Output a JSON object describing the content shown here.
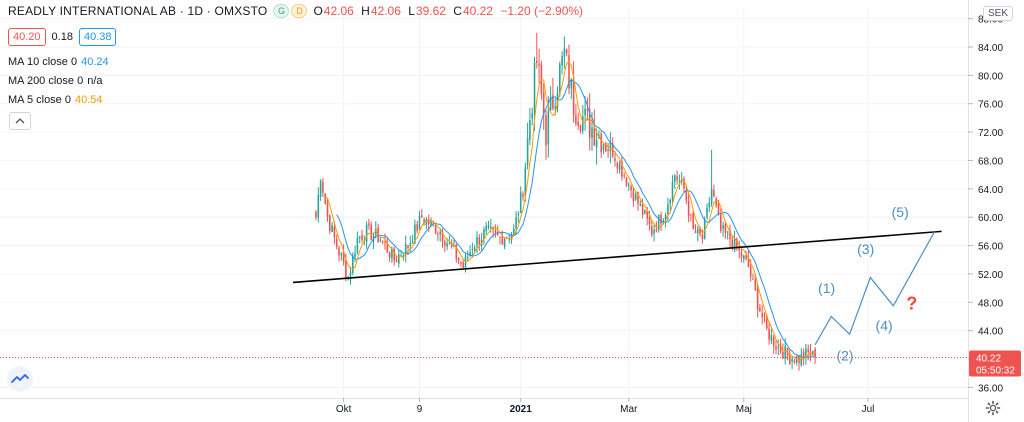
{
  "legend": {
    "symbol": "READLY INTERNATIONAL AB · 1D · OMXSTO",
    "badge_g": "G",
    "badge_d": "D",
    "ohlc": [
      {
        "k": "O",
        "v": "42.06"
      },
      {
        "k": "H",
        "v": "42.06"
      },
      {
        "k": "L",
        "v": "39.62"
      },
      {
        "k": "C",
        "v": "40.22"
      },
      {
        "k": "",
        "v": "−1.20 (−2.90%)"
      }
    ],
    "sell_price": "40.20",
    "spread": "0.18",
    "buy_price": "40.38",
    "ma": [
      {
        "label": "MA 10 close 0",
        "value": "40.24",
        "color": "#2196f3"
      },
      {
        "label": "MA 200 close 0",
        "value": "n/a",
        "color": "#131722"
      },
      {
        "label": "MA 5 close 0",
        "value": "40.54",
        "color": "#ff9800"
      }
    ]
  },
  "currency": "SEK",
  "last_price_label": "40.22",
  "countdown": "05:50:32",
  "colors": {
    "up": "#26a69a",
    "down": "#ef5350",
    "ma10": "#2196f3",
    "ma5": "#ff9800",
    "trendline": "#000000",
    "annotation": "#4a90c2",
    "question": "#e74c3c",
    "price_label_bg": "#ef5350"
  },
  "chart_data": {
    "type": "candlestick",
    "y_ticks": [
      "36.00",
      "40.00",
      "44.00",
      "48.00",
      "52.00",
      "56.00",
      "60.00",
      "64.00",
      "68.00",
      "72.00",
      "76.00",
      "80.00",
      "84.00",
      "88.00"
    ],
    "ylim": [
      34.5,
      89.5
    ],
    "x_ticks": [
      "Okt",
      "9",
      "2021",
      "Mar",
      "Maj",
      "Jul"
    ],
    "price_key_points": [
      {
        "t": 0,
        "c": 60
      },
      {
        "t": 2,
        "c": 66
      },
      {
        "t": 5,
        "c": 60
      },
      {
        "t": 9,
        "c": 56
      },
      {
        "t": 14,
        "c": 51.5
      },
      {
        "t": 18,
        "c": 57
      },
      {
        "t": 22,
        "c": 58
      },
      {
        "t": 28,
        "c": 57
      },
      {
        "t": 34,
        "c": 54
      },
      {
        "t": 40,
        "c": 56
      },
      {
        "t": 46,
        "c": 60
      },
      {
        "t": 50,
        "c": 59
      },
      {
        "t": 54,
        "c": 58
      },
      {
        "t": 60,
        "c": 55
      },
      {
        "t": 64,
        "c": 53
      },
      {
        "t": 68,
        "c": 56
      },
      {
        "t": 74,
        "c": 58
      },
      {
        "t": 80,
        "c": 57
      },
      {
        "t": 86,
        "c": 58
      },
      {
        "t": 90,
        "c": 64
      },
      {
        "t": 93,
        "c": 74
      },
      {
        "t": 96,
        "c": 82
      },
      {
        "t": 100,
        "c": 72
      },
      {
        "t": 104,
        "c": 78
      },
      {
        "t": 108,
        "c": 83
      },
      {
        "t": 112,
        "c": 76
      },
      {
        "t": 116,
        "c": 74
      },
      {
        "t": 122,
        "c": 72
      },
      {
        "t": 128,
        "c": 70
      },
      {
        "t": 134,
        "c": 66
      },
      {
        "t": 140,
        "c": 62
      },
      {
        "t": 146,
        "c": 58
      },
      {
        "t": 152,
        "c": 61
      },
      {
        "t": 156,
        "c": 66
      },
      {
        "t": 160,
        "c": 64
      },
      {
        "t": 164,
        "c": 58
      },
      {
        "t": 168,
        "c": 57
      },
      {
        "t": 172,
        "c": 64
      },
      {
        "t": 176,
        "c": 58
      },
      {
        "t": 180,
        "c": 57
      },
      {
        "t": 184,
        "c": 55
      },
      {
        "t": 188,
        "c": 53
      },
      {
        "t": 192,
        "c": 48
      },
      {
        "t": 196,
        "c": 44
      },
      {
        "t": 200,
        "c": 42
      },
      {
        "t": 205,
        "c": 40.5
      },
      {
        "t": 210,
        "c": 40
      },
      {
        "t": 214,
        "c": 40.8
      },
      {
        "t": 217,
        "c": 40.22
      }
    ],
    "trendline": [
      {
        "t": -10,
        "c": 50.8
      },
      {
        "t": 272,
        "c": 58
      }
    ],
    "projection": [
      {
        "t": 217,
        "c": 42
      },
      {
        "t": 224,
        "c": 46
      },
      {
        "t": 232,
        "c": 43.5
      },
      {
        "t": 241,
        "c": 51.5
      },
      {
        "t": 251,
        "c": 47.5
      },
      {
        "t": 269,
        "c": 58
      }
    ],
    "wave_labels": [
      "(1)",
      "(2)",
      "(3)",
      "(4)",
      "(5)"
    ],
    "question_label": "?",
    "last_price": 40.22,
    "spike": {
      "t": 172,
      "high": 69.5
    }
  }
}
